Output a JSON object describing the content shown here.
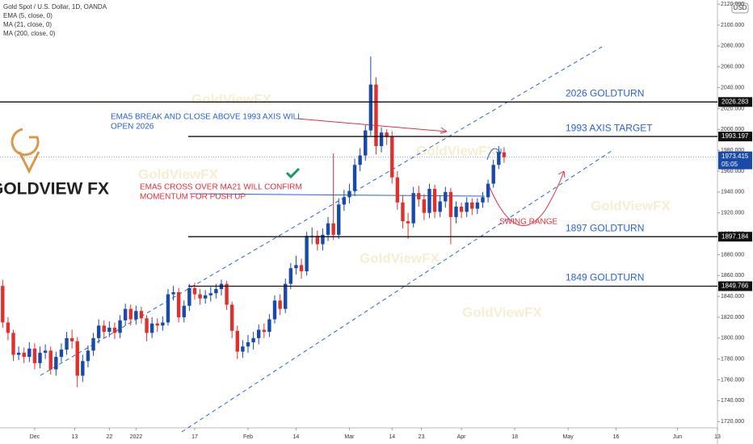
{
  "chart_data": {
    "type": "candlestick",
    "title": "Gold Spot / U.S. Dollar, 1D, OANDA",
    "indicators": [
      "EMA (5, close, 0)",
      "MA (21, close, 0)",
      "MA (200, close, 0)"
    ],
    "currency": "USD",
    "logo": "GOLDVIEW FX",
    "watermark": "GoldViewFX",
    "up_color": "#1a4aa8",
    "down_color": "#e0302e",
    "open": [
      1850,
      1815,
      1805,
      1784,
      1786,
      1782,
      1790,
      1776,
      1786,
      1788,
      1770,
      1782,
      1789,
      1800,
      1797,
      1764,
      1778,
      1788,
      1800,
      1812,
      1806,
      1810,
      1805,
      1817,
      1828,
      1818,
      1826,
      1819,
      1805,
      1814,
      1812,
      1815,
      1842,
      1844,
      1820,
      1831,
      1848,
      1842,
      1838,
      1841,
      1843,
      1847,
      1852,
      1832,
      1807,
      1787,
      1792,
      1796,
      1800,
      1808,
      1806,
      1818,
      1836,
      1828,
      1852,
      1867,
      1870,
      1864,
      1898,
      1898,
      1890,
      1899,
      1910,
      1899,
      1928,
      1935,
      1941,
      1966,
      1975,
      1999,
      2043,
      1984,
      1997,
      1993,
      1954,
      1930,
      1912,
      1910,
      1939,
      1933,
      1920,
      1943,
      1921,
      1931,
      1940,
      1916,
      1926,
      1921,
      1930,
      1924,
      1930,
      1935,
      1948,
      1966,
      1978
    ],
    "high": [
      1856,
      1820,
      1808,
      1792,
      1791,
      1796,
      1795,
      1792,
      1794,
      1792,
      1787,
      1795,
      1806,
      1808,
      1801,
      1784,
      1793,
      1805,
      1818,
      1817,
      1816,
      1815,
      1822,
      1833,
      1832,
      1831,
      1830,
      1822,
      1820,
      1819,
      1821,
      1847,
      1850,
      1848,
      1836,
      1852,
      1853,
      1847,
      1846,
      1849,
      1852,
      1856,
      1855,
      1835,
      1812,
      1798,
      1803,
      1806,
      1813,
      1814,
      1823,
      1841,
      1842,
      1857,
      1872,
      1879,
      1876,
      1902,
      1906,
      1903,
      1905,
      1916,
      1977,
      1934,
      1942,
      1948,
      1972,
      1982,
      2004,
      2070,
      2050,
      2002,
      2000,
      1998,
      1960,
      1937,
      1920,
      1945,
      1946,
      1938,
      1948,
      1947,
      1937,
      1945,
      1944,
      1931,
      1930,
      1935,
      1934,
      1934,
      1940,
      1952,
      1971,
      1984,
      1983
    ],
    "low": [
      1810,
      1798,
      1778,
      1779,
      1776,
      1777,
      1770,
      1771,
      1780,
      1765,
      1764,
      1777,
      1784,
      1790,
      1753,
      1758,
      1772,
      1783,
      1795,
      1800,
      1801,
      1799,
      1800,
      1812,
      1812,
      1813,
      1814,
      1797,
      1800,
      1806,
      1807,
      1812,
      1836,
      1815,
      1815,
      1826,
      1837,
      1832,
      1833,
      1835,
      1838,
      1841,
      1827,
      1800,
      1780,
      1781,
      1786,
      1789,
      1794,
      1800,
      1801,
      1814,
      1822,
      1824,
      1847,
      1861,
      1857,
      1860,
      1890,
      1884,
      1884,
      1893,
      1894,
      1895,
      1922,
      1929,
      1936,
      1960,
      1970,
      1994,
      1976,
      1978,
      1985,
      1948,
      1923,
      1905,
      1895,
      1906,
      1926,
      1913,
      1915,
      1915,
      1916,
      1925,
      1890,
      1910,
      1915,
      1916,
      1918,
      1919,
      1925,
      1930,
      1944,
      1962,
      1968
    ],
    "close": [
      1815,
      1805,
      1784,
      1786,
      1782,
      1790,
      1776,
      1786,
      1788,
      1770,
      1782,
      1789,
      1800,
      1797,
      1764,
      1778,
      1788,
      1800,
      1812,
      1806,
      1810,
      1805,
      1817,
      1828,
      1818,
      1826,
      1819,
      1805,
      1814,
      1812,
      1815,
      1842,
      1844,
      1820,
      1831,
      1848,
      1842,
      1838,
      1841,
      1843,
      1847,
      1852,
      1832,
      1807,
      1787,
      1792,
      1796,
      1800,
      1808,
      1806,
      1818,
      1836,
      1828,
      1852,
      1867,
      1870,
      1864,
      1898,
      1898,
      1890,
      1899,
      1910,
      1899,
      1928,
      1935,
      1941,
      1966,
      1975,
      1999,
      2043,
      1984,
      1997,
      1993,
      1954,
      1930,
      1912,
      1910,
      1939,
      1933,
      1920,
      1943,
      1921,
      1931,
      1940,
      1916,
      1926,
      1921,
      1930,
      1924,
      1930,
      1935,
      1948,
      1966,
      1978,
      1973.415
    ],
    "countdown": "05:05",
    "xlim": [
      -0.5,
      134
    ],
    "xticks": [
      {
        "value": 6,
        "label": "Dec"
      },
      {
        "value": 13.5,
        "label": "13"
      },
      {
        "value": 20,
        "label": "22"
      },
      {
        "value": 25,
        "label": "2022"
      },
      {
        "value": 36,
        "label": "17"
      },
      {
        "value": 46,
        "label": "Feb"
      },
      {
        "value": 55,
        "label": "14"
      },
      {
        "value": 65,
        "label": "Mar"
      },
      {
        "value": 73,
        "label": "14"
      },
      {
        "value": 78.5,
        "label": "23"
      },
      {
        "value": 86,
        "label": "Apr"
      },
      {
        "value": 96,
        "label": "18"
      },
      {
        "value": 106,
        "label": "May"
      },
      {
        "value": 115,
        "label": "16"
      },
      {
        "value": 126.5,
        "label": "Jun"
      },
      {
        "value": 134,
        "label": "13"
      }
    ],
    "ylim": [
      1714,
      2124
    ],
    "yticks": [
      {
        "value": 1720,
        "label": "1720.000"
      },
      {
        "value": 1740,
        "label": "1740.000"
      },
      {
        "value": 1760,
        "label": "1760.000"
      },
      {
        "value": 1780,
        "label": "1780.000"
      },
      {
        "value": 1800,
        "label": "1800.000"
      },
      {
        "value": 1820,
        "label": "1820.000"
      },
      {
        "value": 1840,
        "label": "1840.000"
      },
      {
        "value": 1860,
        "label": "1860.000"
      },
      {
        "value": 1880,
        "label": "1880.000"
      },
      {
        "value": 1900,
        "label": "1900.000"
      },
      {
        "value": 1920,
        "label": "1920.000"
      },
      {
        "value": 1940,
        "label": "1940.000"
      },
      {
        "value": 1960,
        "label": "1960.000"
      },
      {
        "value": 1980,
        "label": "1980.000"
      },
      {
        "value": 2000,
        "label": "2000.000"
      },
      {
        "value": 2020,
        "label": "2020.000"
      },
      {
        "value": 2040,
        "label": "2040.000"
      },
      {
        "value": 2060,
        "label": "2060.000"
      },
      {
        "value": 2080,
        "label": "2080.000"
      },
      {
        "value": 2100,
        "label": "2100.000"
      },
      {
        "value": 2120,
        "label": "2120.000"
      }
    ],
    "levels": [
      {
        "value": 2026.283,
        "text": "2026 GOLDTURN"
      },
      {
        "value": 1993.197,
        "text": "1993 AXIS TARGET"
      },
      {
        "value": 1897.184,
        "text": "1897 GOLDTURN"
      },
      {
        "value": 1849.766,
        "text": "1849 GOLDTURN"
      }
    ],
    "annotations": [
      "EMA5 BREAK AND CLOSE ABOVE 1993 AXIS WILL",
      "OPEN 2026",
      "EMA5 CROSS OVER MA21 WILL CONFIRM",
      "MOMENTUM FOR PUSH UP",
      "SWING RANGE"
    ]
  }
}
